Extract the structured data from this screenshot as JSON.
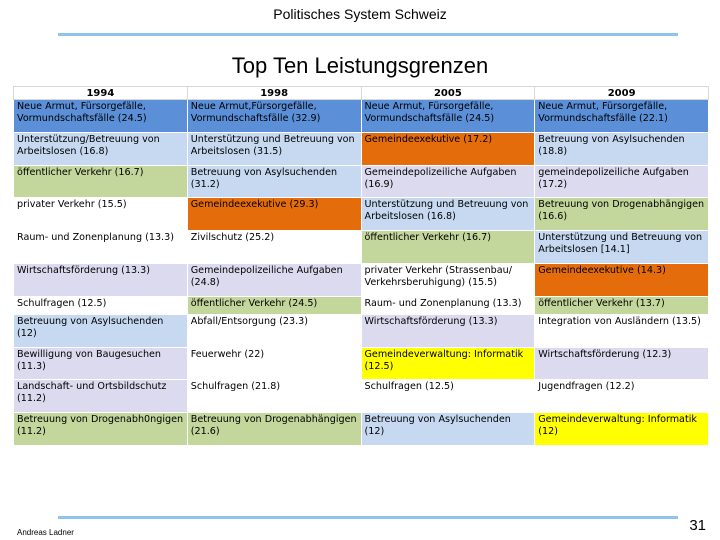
{
  "header": {
    "text": "Politisches System Schweiz"
  },
  "title": "Top Ten Leistungsgrenzen",
  "colors": {
    "blue": "#5b8fd8",
    "lightblue": "#c6d9f0",
    "green": "#c3d69b",
    "white": "#ffffff",
    "orange": "#e46c0a",
    "lavender": "#dcdaee",
    "yellow": "#ffff00",
    "rule": "#8ec3ea"
  },
  "table": {
    "columns": [
      "1994",
      "1998",
      "2005",
      "2009"
    ],
    "rows": [
      [
        {
          "text": "Neue Armut, Fürsorgefälle, Vormundschaftsfälle (24.5)",
          "color": "blue"
        },
        {
          "text": "Neue Armut,Fürsorgefälle, Vormundschaftsfälle (32.9)",
          "color": "blue"
        },
        {
          "text": "Neue Armut, Fürsorgefälle, Vormundschaftsfälle (24.5)",
          "color": "blue"
        },
        {
          "text": "Neue Armut, Fürsorgefälle, Vormundschaftsfälle (22.1)",
          "color": "blue"
        }
      ],
      [
        {
          "text": "Unterstützung/Betreuung von Arbeitslosen (16.8)",
          "color": "lightblue"
        },
        {
          "text": "Unterstützung und Betreuung von Arbeitslosen (31.5)",
          "color": "lightblue"
        },
        {
          "text": "Gemeindeexekutive (17.2)",
          "color": "orange"
        },
        {
          "text": "Betreuung von Asylsuchenden (18.8)",
          "color": "lightblue"
        }
      ],
      [
        {
          "text": "öffentlicher Verkehr (16.7)",
          "color": "green"
        },
        {
          "text": "Betreuung von Asylsuchenden (31.2)",
          "color": "lightblue"
        },
        {
          "text": "Gemeindepolizeiliche Aufgaben (16.9)",
          "color": "lavender"
        },
        {
          "text": "gemeindepolizeiliche Aufgaben (17.2)",
          "color": "lavender"
        }
      ],
      [
        {
          "text": "privater Verkehr (15.5)",
          "color": "white"
        },
        {
          "text": "Gemeindeexekutive (29.3)",
          "color": "orange"
        },
        {
          "text": "Unterstützung und Betreuung von Arbeitslosen (16.8)",
          "color": "lightblue"
        },
        {
          "text": "Betreuung von Drogenabhängigen (16.6)",
          "color": "green"
        }
      ],
      [
        {
          "text": "Raum- und Zonenplanung (13.3)",
          "color": "white"
        },
        {
          "text": "Zivilschutz (25.2)",
          "color": "white"
        },
        {
          "text": "öffentlicher Verkehr (16.7)",
          "color": "green"
        },
        {
          "text": "Unterstützung und Betreuung von Arbeitslosen [14.1]",
          "color": "lightblue"
        }
      ],
      [
        {
          "text": "Wirtschaftsförderung (13.3)",
          "color": "lavender"
        },
        {
          "text": "Gemeindepolizeiliche Aufgaben (24.8)",
          "color": "lavender"
        },
        {
          "text": "privater Verkehr (Strassenbau/ Verkehrsberuhigung) (15.5)",
          "color": "white"
        },
        {
          "text": "Gemeindeexekutive (14.3)",
          "color": "orange"
        }
      ],
      [
        {
          "text": "Schulfragen (12.5)",
          "color": "white"
        },
        {
          "text": "öffentlicher Verkehr (24.5)",
          "color": "green"
        },
        {
          "text": "Raum- und Zonenplanung (13.3)",
          "color": "white"
        },
        {
          "text": "öffentlicher Verkehr (13.7)",
          "color": "green"
        }
      ],
      [
        {
          "text": "Betreuung von Asylsuchenden (12)",
          "color": "lightblue"
        },
        {
          "text": "Abfall/Entsorgung (23.3)",
          "color": "white"
        },
        {
          "text": "Wirtschaftsförderung (13.3)",
          "color": "lavender"
        },
        {
          "text": "Integration von Ausländern (13.5)",
          "color": "white"
        }
      ],
      [
        {
          "text": "Bewilligung von Baugesuchen (11.3)",
          "color": "lavender"
        },
        {
          "text": "Feuerwehr (22)",
          "color": "white"
        },
        {
          "text": "Gemeindeverwaltung: Informatik (12.5)",
          "color": "yellow"
        },
        {
          "text": "Wirtschaftsförderung (12.3)",
          "color": "lavender"
        }
      ],
      [
        {
          "text": "Landschaft- und Ortsbildschutz (11.2)",
          "color": "lavender"
        },
        {
          "text": "Schulfragen (21.8)",
          "color": "white"
        },
        {
          "text": "Schulfragen (12.5)",
          "color": "white"
        },
        {
          "text": "Jugendfragen (12.2)",
          "color": "white"
        }
      ],
      [
        {
          "text": "Betreuung von Drogenabh0ngigen (11.2)",
          "color": "green"
        },
        {
          "text": "Betreuung von Drogenabhängigen (21.6)",
          "color": "green"
        },
        {
          "text": "Betreuung von Asylsuchenden (12)",
          "color": "lightblue"
        },
        {
          "text": "Gemeindeverwaltung: Informatik (12)",
          "color": "yellow"
        }
      ]
    ]
  },
  "footer": {
    "author": "Andreas Ladner",
    "page": "31"
  }
}
